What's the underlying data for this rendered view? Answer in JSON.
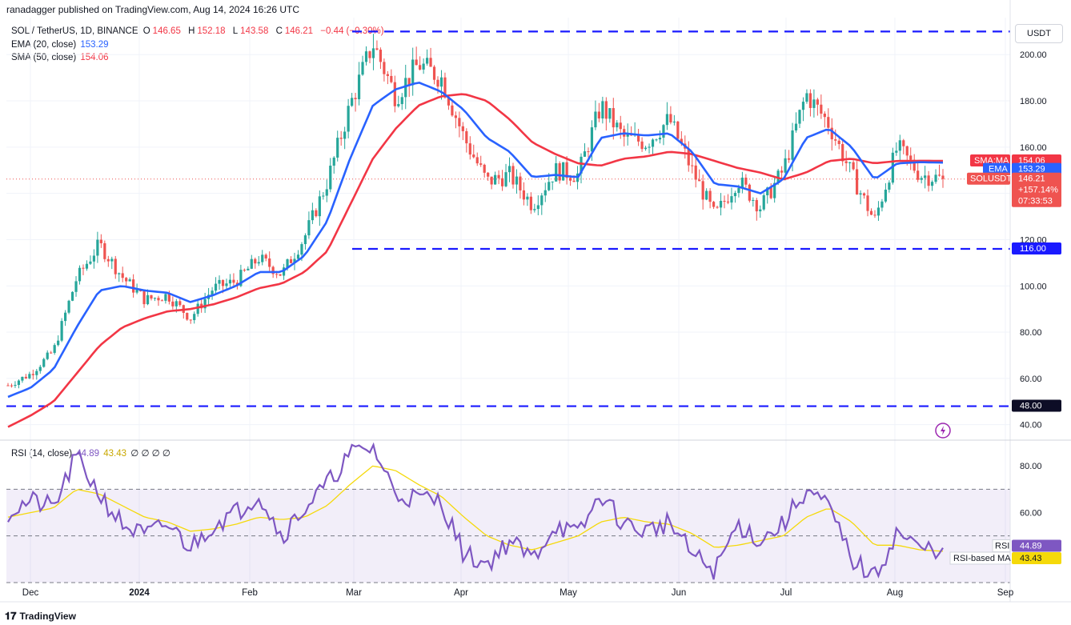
{
  "header": {
    "published": "ranadagger published on TradingView.com, Aug 14, 2024 16:26 UTC"
  },
  "legend": {
    "symbol": "SOL / TetherUS, 1D, BINANCE",
    "o_label": "O",
    "o": "146.65",
    "h_label": "H",
    "h": "152.18",
    "l_label": "L",
    "l": "143.58",
    "c_label": "C",
    "c": "146.21",
    "change": "−0.44 (−0.30%)",
    "ema_label": "EMA (20, close)",
    "ema_value": "153.29",
    "sma_label": "SMA (50, close)",
    "sma_value": "154.06",
    "rsi_label": "RSI (14, close)",
    "rsi_value": "44.89",
    "rsi_ma_value": "43.43",
    "rsi_extra": "∅ ∅ ∅ ∅"
  },
  "currency_button": "USDT",
  "price_tags": {
    "sma_tag": "SMA:MA",
    "sma_val": "154.06",
    "ema_tag": "EMA",
    "ema_val": "153.29",
    "sym_tag": "SOLUSDT",
    "sym_val": "146.21",
    "sym_pct": "+157.14%",
    "sym_timer": "07:33:53",
    "level_116": "116.00",
    "level_48": "48.00",
    "rsi_tag": "RSI",
    "rsi_val": "44.89",
    "rsi_ma_tag": "RSI-based MA",
    "rsi_ma_val": "43.43"
  },
  "colors": {
    "up": "#26a69a",
    "down": "#ef5350",
    "ema": "#2962ff",
    "sma": "#f23645",
    "rsi": "#7e57c2",
    "rsi_ma": "#f5d90a",
    "level": "#1a1aff"
  },
  "footer": {
    "brand": "TradingView",
    "logo_icon": "tradingview-logo-icon"
  },
  "chart_data": [
    {
      "type": "candlestick",
      "title": "SOL / TetherUS, 1D, BINANCE",
      "ylim": [
        34,
        216
      ],
      "y_ticks": [
        40,
        60,
        80,
        100,
        120,
        140,
        160,
        180,
        200
      ],
      "y_tick_labels": [
        "40.00",
        "60.00",
        "80.00",
        "100.00",
        "120.00",
        "140.00",
        "160.00",
        "180.00",
        "200.00"
      ],
      "x_labels": [
        "Dec",
        "2024",
        "Feb",
        "Mar",
        "Apr",
        "May",
        "Jun",
        "Jul",
        "Aug",
        "Sep"
      ],
      "horizontal_levels": [
        210,
        116,
        48
      ],
      "series_close": {
        "dates": [
          "Nov 27",
          "Dec 5",
          "Dec 13",
          "Dec 21",
          "Dec 25",
          "Jan 1",
          "Jan 10",
          "Jan 20",
          "Jan 24",
          "Feb 1",
          "Feb 8",
          "Feb 16",
          "Feb 24",
          "Mar 1",
          "Mar 7",
          "Mar 12",
          "Mar 18",
          "Mar 21",
          "Mar 27",
          "Apr 1",
          "Apr 8",
          "Apr 13",
          "Apr 20",
          "May 1",
          "May 8",
          "May 15",
          "May 20",
          "May 26",
          "Jun 1",
          "Jun 7",
          "Jun 14",
          "Jun 24",
          "Jul 1",
          "Jul 5",
          "Jul 14",
          "Jul 21",
          "Jul 29",
          "Aug 2",
          "Aug 5",
          "Aug 8",
          "Aug 11",
          "Aug 14"
        ],
        "close": [
          57,
          62,
          72,
          103,
          118,
          104,
          94,
          96,
          86,
          99,
          102,
          112,
          105,
          121,
          145,
          178,
          205,
          182,
          196,
          190,
          164,
          145,
          148,
          135,
          150,
          148,
          178,
          164,
          162,
          172,
          150,
          130,
          146,
          134,
          150,
          183,
          170,
          148,
          128,
          160,
          148,
          146.21
        ]
      },
      "ema20_close": [
        52,
        56,
        64,
        82,
        98,
        100,
        98,
        97,
        93,
        96,
        100,
        106,
        106,
        113,
        128,
        155,
        178,
        185,
        188,
        184,
        176,
        164,
        158,
        147,
        148,
        147,
        164,
        166,
        165,
        166,
        158,
        144,
        143,
        140,
        146,
        164,
        168,
        160,
        146,
        153,
        153.5,
        153.29
      ],
      "sma50_close": [
        39,
        44,
        50,
        62,
        74,
        82,
        86,
        89,
        90,
        92,
        95,
        99,
        101,
        106,
        115,
        135,
        155,
        168,
        178,
        182,
        183,
        180,
        172,
        162,
        157,
        153,
        152,
        155,
        156,
        158,
        157,
        154,
        151,
        149,
        146,
        149,
        154,
        155,
        153,
        154,
        154.1,
        154.06
      ]
    },
    {
      "type": "line",
      "title": "RSI (14, close)",
      "ylim": [
        30,
        90
      ],
      "y_tick_labels": [
        "60.00",
        "80.00"
      ],
      "band": [
        30,
        70
      ],
      "midline": 50,
      "x": [
        "Nov 27",
        "Dec 5",
        "Dec 13",
        "Dec 21",
        "Dec 25",
        "Jan 1",
        "Jan 10",
        "Jan 20",
        "Jan 24",
        "Feb 1",
        "Feb 8",
        "Feb 16",
        "Feb 24",
        "Mar 1",
        "Mar 7",
        "Mar 12",
        "Mar 18",
        "Mar 21",
        "Mar 27",
        "Apr 1",
        "Apr 8",
        "Apr 13",
        "Apr 20",
        "May 1",
        "May 8",
        "May 15",
        "May 20",
        "May 26",
        "Jun 1",
        "Jun 7",
        "Jun 14",
        "Jun 24",
        "Jul 1",
        "Jul 5",
        "Jul 14",
        "Jul 21",
        "Jul 29",
        "Aug 2",
        "Aug 5",
        "Aug 8",
        "Aug 11",
        "Aug 14"
      ],
      "series": [
        {
          "name": "RSI (14, close)",
          "values": [
            60,
            65,
            62,
            84,
            68,
            55,
            50,
            55,
            45,
            55,
            60,
            68,
            50,
            62,
            72,
            85,
            88,
            68,
            66,
            65,
            42,
            38,
            48,
            40,
            55,
            50,
            68,
            55,
            52,
            56,
            42,
            35,
            55,
            48,
            55,
            70,
            62,
            40,
            32,
            52,
            44,
            44.89
          ]
        },
        {
          "name": "RSI-based MA",
          "values": [
            58,
            60,
            62,
            70,
            68,
            63,
            58,
            56,
            52,
            53,
            55,
            58,
            57,
            58,
            63,
            72,
            80,
            78,
            72,
            67,
            58,
            50,
            46,
            44,
            47,
            50,
            56,
            58,
            56,
            55,
            51,
            45,
            46,
            48,
            50,
            58,
            62,
            56,
            46,
            46,
            44,
            43.43
          ]
        }
      ]
    }
  ]
}
